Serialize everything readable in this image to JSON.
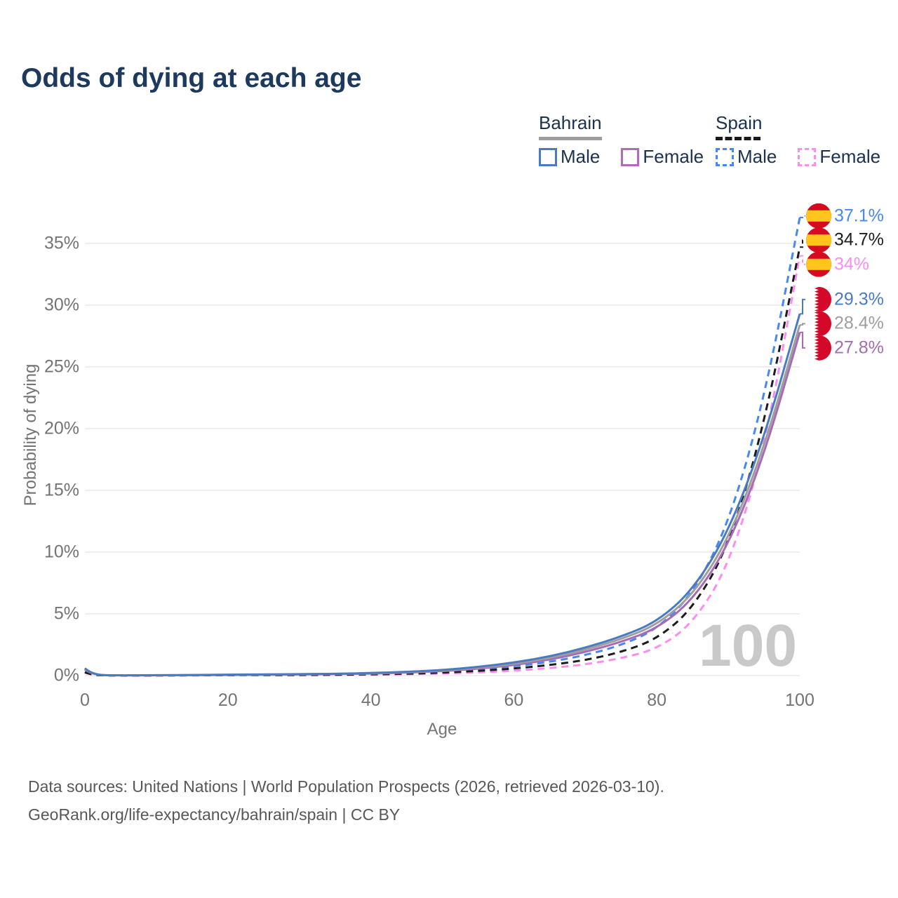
{
  "title": "Odds of dying at each age",
  "watermark_age": "100",
  "footer": {
    "line1": "Data sources: United Nations | World Population Prospects (2026, retrieved 2026-03-10).",
    "line2": "GeoRank.org/life-expectancy/bahrain/spain | CC BY"
  },
  "legend": {
    "groups": [
      {
        "id": "bahrain",
        "label": "Bahrain",
        "underline_style": "solid",
        "underline_color": "#9e9e9e",
        "underline_width": 90,
        "items": [
          {
            "label": "Male",
            "color": "#4a7bc0",
            "dashed": false
          },
          {
            "label": "Female",
            "color": "#b26ab9",
            "dashed": false
          }
        ]
      },
      {
        "id": "spain",
        "label": "Spain",
        "underline_style": "dashed",
        "underline_color": "#1a1a1a",
        "underline_width": 64,
        "items": [
          {
            "label": "Male",
            "color": "#4788f0",
            "dashed": true
          },
          {
            "label": "Female",
            "color": "#fb8df0",
            "dashed": true
          }
        ]
      }
    ]
  },
  "chart_data": {
    "type": "line",
    "title": "Odds of dying at each age",
    "xlabel": "Age",
    "ylabel": "Probability of dying",
    "xlim": [
      0,
      100
    ],
    "ylim_percent": [
      0,
      37.1
    ],
    "x_ticks": [
      0,
      20,
      40,
      60,
      80,
      100
    ],
    "y_ticks": [
      "0%",
      "5%",
      "10%",
      "15%",
      "20%",
      "25%",
      "30%",
      "35%"
    ],
    "y_tick_values": [
      0,
      5,
      10,
      15,
      20,
      25,
      30,
      35
    ],
    "grid": "horizontal-only",
    "legend_position": "top-right",
    "ages": [
      0,
      1,
      5,
      10,
      15,
      20,
      25,
      30,
      35,
      40,
      45,
      50,
      55,
      60,
      65,
      70,
      75,
      80,
      85,
      90,
      95,
      100
    ],
    "values_unit": "percent probability of dying at that age",
    "series": [
      {
        "name": "Spain Male",
        "country": "spain",
        "sex": "Male",
        "color": "#4788f0",
        "dashed": true,
        "end_label": "37.1%",
        "end_value": 37.1,
        "flag": "spain",
        "values": [
          0.3,
          0.03,
          0.01,
          0.01,
          0.03,
          0.05,
          0.06,
          0.07,
          0.09,
          0.13,
          0.2,
          0.32,
          0.5,
          0.75,
          1.1,
          1.65,
          2.45,
          3.75,
          6.6,
          12.2,
          22.3,
          37.1
        ]
      },
      {
        "name": "Spain Female",
        "country": "spain",
        "sex": "Female",
        "color": "#fb8df0",
        "dashed": true,
        "end_label": "34%",
        "end_value": 34.0,
        "flag": "spain",
        "values": [
          0.25,
          0.02,
          0.01,
          0.01,
          0.02,
          0.02,
          0.03,
          0.03,
          0.05,
          0.07,
          0.11,
          0.16,
          0.25,
          0.4,
          0.6,
          0.9,
          1.4,
          2.15,
          4.2,
          8.8,
          18.2,
          34.0
        ]
      },
      {
        "name": "Spain Both",
        "country": "spain",
        "sex": "Both",
        "color": "#1c1c1c",
        "dashed": true,
        "end_label": "34.7%",
        "end_value": 34.7,
        "flag": "spain",
        "values": [
          0.27,
          0.02,
          0.01,
          0.01,
          0.02,
          0.04,
          0.04,
          0.05,
          0.07,
          0.1,
          0.15,
          0.24,
          0.38,
          0.57,
          0.85,
          1.25,
          1.9,
          2.95,
          5.4,
          10.4,
          20.2,
          34.7
        ]
      },
      {
        "name": "Bahrain Female",
        "country": "bahrain",
        "sex": "Female",
        "color": "#a76ab4",
        "dashed": false,
        "end_label": "27.8%",
        "end_value": 27.8,
        "flag": "bahrain",
        "values": [
          0.5,
          0.04,
          0.02,
          0.02,
          0.03,
          0.05,
          0.07,
          0.09,
          0.12,
          0.16,
          0.24,
          0.36,
          0.55,
          0.85,
          1.28,
          1.9,
          2.72,
          3.8,
          6.1,
          10.5,
          17.8,
          27.8
        ]
      },
      {
        "name": "Bahrain Both",
        "country": "bahrain",
        "sex": "Both",
        "color": "#9e9e9e",
        "dashed": false,
        "end_label": "28.4%",
        "end_value": 28.4,
        "flag": "bahrain",
        "values": [
          0.55,
          0.04,
          0.02,
          0.02,
          0.04,
          0.07,
          0.09,
          0.11,
          0.14,
          0.19,
          0.27,
          0.41,
          0.63,
          0.95,
          1.42,
          2.08,
          2.95,
          4.1,
          6.5,
          11.0,
          18.4,
          28.4
        ]
      },
      {
        "name": "Bahrain Male",
        "country": "bahrain",
        "sex": "Male",
        "color": "#4a7bc0",
        "dashed": false,
        "end_label": "29.3%",
        "end_value": 29.3,
        "flag": "bahrain",
        "values": [
          0.6,
          0.05,
          0.02,
          0.03,
          0.05,
          0.08,
          0.1,
          0.12,
          0.15,
          0.21,
          0.3,
          0.45,
          0.7,
          1.05,
          1.55,
          2.25,
          3.15,
          4.35,
          6.9,
          11.6,
          19.2,
          29.3
        ]
      }
    ],
    "flag_colors": {
      "spain_red": "#d50b1f",
      "spain_yellow": "#ffc41d",
      "bahrain_red": "#d4092a",
      "bahrain_white": "#ffffff"
    }
  }
}
